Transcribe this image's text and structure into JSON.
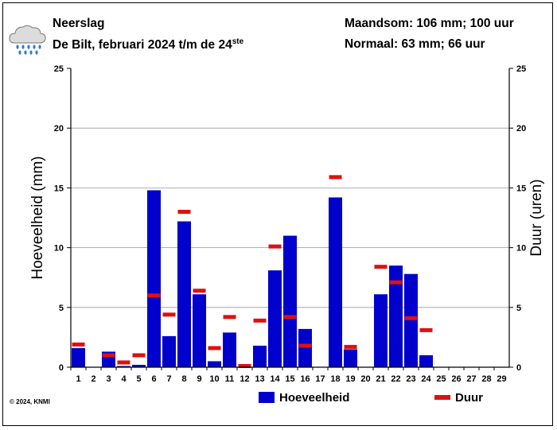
{
  "header": {
    "title": "Neerslag",
    "subtitle": "De Bilt, februari 2024 t/m de 24",
    "subtitle_suffix": "ste",
    "summary_month": "Maandsom: 106 mm; 100 uur",
    "summary_normal": "Normaal: 63 mm; 66 uur",
    "icon": "rain-cloud-icon"
  },
  "footer": {
    "copyright": "© 2024, KNMI"
  },
  "colors": {
    "bar": "#0000cc",
    "duration": "#e01010",
    "grid": "#999999"
  },
  "chart_data": {
    "type": "bar",
    "categories": [
      "1",
      "2",
      "3",
      "4",
      "5",
      "6",
      "7",
      "8",
      "9",
      "10",
      "11",
      "12",
      "13",
      "14",
      "15",
      "16",
      "17",
      "18",
      "19",
      "20",
      "21",
      "22",
      "23",
      "24",
      "25",
      "26",
      "27",
      "28",
      "29"
    ],
    "series": [
      {
        "name": "Hoeveelheid",
        "type": "bar",
        "values": [
          1.6,
          0,
          1.3,
          0.1,
          0.2,
          14.8,
          2.6,
          12.2,
          6.1,
          0.5,
          2.9,
          0,
          1.8,
          8.1,
          11.0,
          3.2,
          0,
          14.2,
          1.5,
          0,
          6.1,
          8.5,
          7.8,
          1.0,
          null,
          null,
          null,
          null,
          null
        ]
      },
      {
        "name": "Duur",
        "type": "marker",
        "values": [
          1.9,
          null,
          1.0,
          0.4,
          1.0,
          6.0,
          4.4,
          13.0,
          6.4,
          1.6,
          4.2,
          0.1,
          3.9,
          10.1,
          4.2,
          1.8,
          null,
          15.9,
          1.7,
          null,
          8.4,
          7.1,
          4.1,
          3.1,
          null,
          null,
          null,
          null,
          null
        ]
      }
    ],
    "ylabel": "Hoeveelheid (mm)",
    "ylabel_right": "Duur (uren)",
    "ylim": [
      0,
      25
    ],
    "yticks": [
      0,
      5,
      10,
      15,
      20,
      25
    ],
    "grid": true,
    "legend": "bottom"
  }
}
